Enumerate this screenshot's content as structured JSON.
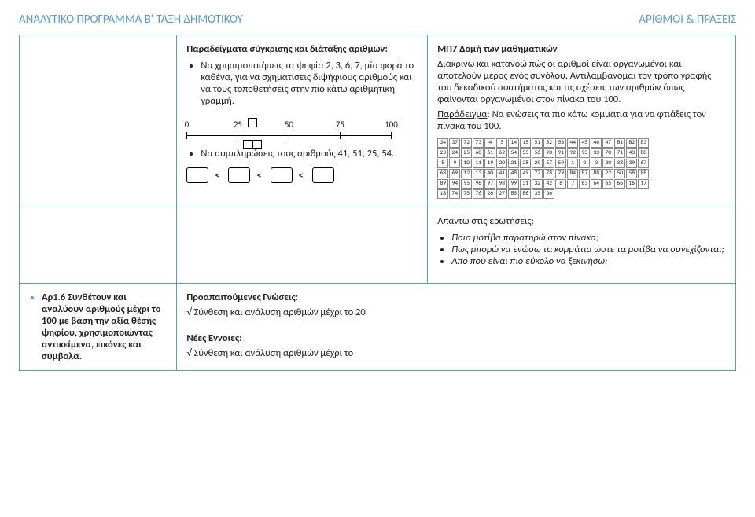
{
  "header": {
    "left": "ΑΝΑΛΥΤΙΚΟ ΠΡΟΓΡΑΜΜΑ Β' ΤΑΞΗ ΔΗΜΟΤΙΚΟΥ",
    "right": "ΑΡΙΘΜΟΙ & ΠΡΑΞΕΙΣ"
  },
  "row1": {
    "col2": {
      "title": "Παραδείγματα σύγκρισης και διάταξης αριθμών:",
      "b1": "Να χρησιμοποιήσεις τα ψηφία 2, 3, 6, 7, μία φορά το καθένα, για να σχηματίσεις διψήφιους αριθμούς και να τους τοποθετήσεις στην πιο κάτω αριθμητική γραμμή.",
      "b2": "Να συμπληρώσεις τους αριθμούς 41, 51, 25, 54.",
      "numberline": {
        "min": 0,
        "max": 100,
        "ticks": [
          0,
          25,
          50,
          75,
          100
        ]
      }
    },
    "col3": {
      "title": "ΜΠ7 Δομή των μαθηματικών",
      "p1": "Διακρίνω και κατανοώ πώς οι αριθμοί είναι οργανωμένοι και αποτελούν μέρος ενός συνόλου. Αντιλαμβάνομαι τον τρόπο γραφής του δεκαδικού συστήματος και τις σχέσεις των αριθμών όπως φαίνονται οργανωμένοι στον πίνακα του 100.",
      "example_label": "Παράδειγμα",
      "example_text": ": Να ενώσεις τα πιο κάτω κομμάτια για να φτιάξεις τον πίνακα του 100.",
      "grid_cells": [
        "34",
        "37",
        "72",
        "73",
        "4",
        "5",
        "14",
        "15",
        "51",
        "52",
        "53",
        "44",
        "45",
        "46",
        "47",
        "81",
        "82",
        "83",
        "23",
        "24",
        "25",
        "60",
        "61",
        "62",
        "54",
        "55",
        "56",
        "90",
        "91",
        "92",
        "93",
        "33",
        "70",
        "71",
        "43",
        "80",
        "8",
        "9",
        "10",
        "11",
        "19",
        "20",
        "21",
        "28",
        "29",
        "57",
        "59",
        "1",
        "2",
        "3",
        "30",
        "38",
        "39",
        "67",
        "68",
        "69",
        "12",
        "13",
        "40",
        "41",
        "48",
        "49",
        "77",
        "78",
        "79",
        "84",
        "87",
        "88",
        "22",
        "50",
        "58",
        "88",
        "89",
        "94",
        "95",
        "96",
        "97",
        "98",
        "99",
        "31",
        "32",
        "42",
        "6",
        "7",
        "63",
        "64",
        "65",
        "66",
        "16",
        "17",
        "18",
        "74",
        "75",
        "76",
        "26",
        "27",
        "85",
        "86",
        "35",
        "36"
      ]
    }
  },
  "row2": {
    "answers_title": "Απαντώ στις ερωτήσεις:",
    "q1": "Ποια μοτίβα παρατηρώ στον πίνακα;",
    "q2": "Πώς μπορώ να ενώσω τα κομμάτια ώστε τα μοτίβα να συνεχίζονται;",
    "q3": "Από πού είναι πιο εύκολο να ξεκινήσω;"
  },
  "row3": {
    "col1_bullet": "Αρ1.6 Συνθέτουν και αναλύουν αριθμούς μέχρι το 100 με βάση την αξία θέσης ψηφίου, χρησιμοποιώντας αντικείμενα, εικόνες και σύμβολα.",
    "prereq_title": "Προαπαιτούμενες Γνώσεις:",
    "prereq_item": "√ Σύνθεση και ανάλυση αριθμών μέχρι το 20",
    "new_title": "Νέες Έννοιες:",
    "new_item": "√ Σύνθεση και ανάλυση αριθμών μέχρι το"
  }
}
